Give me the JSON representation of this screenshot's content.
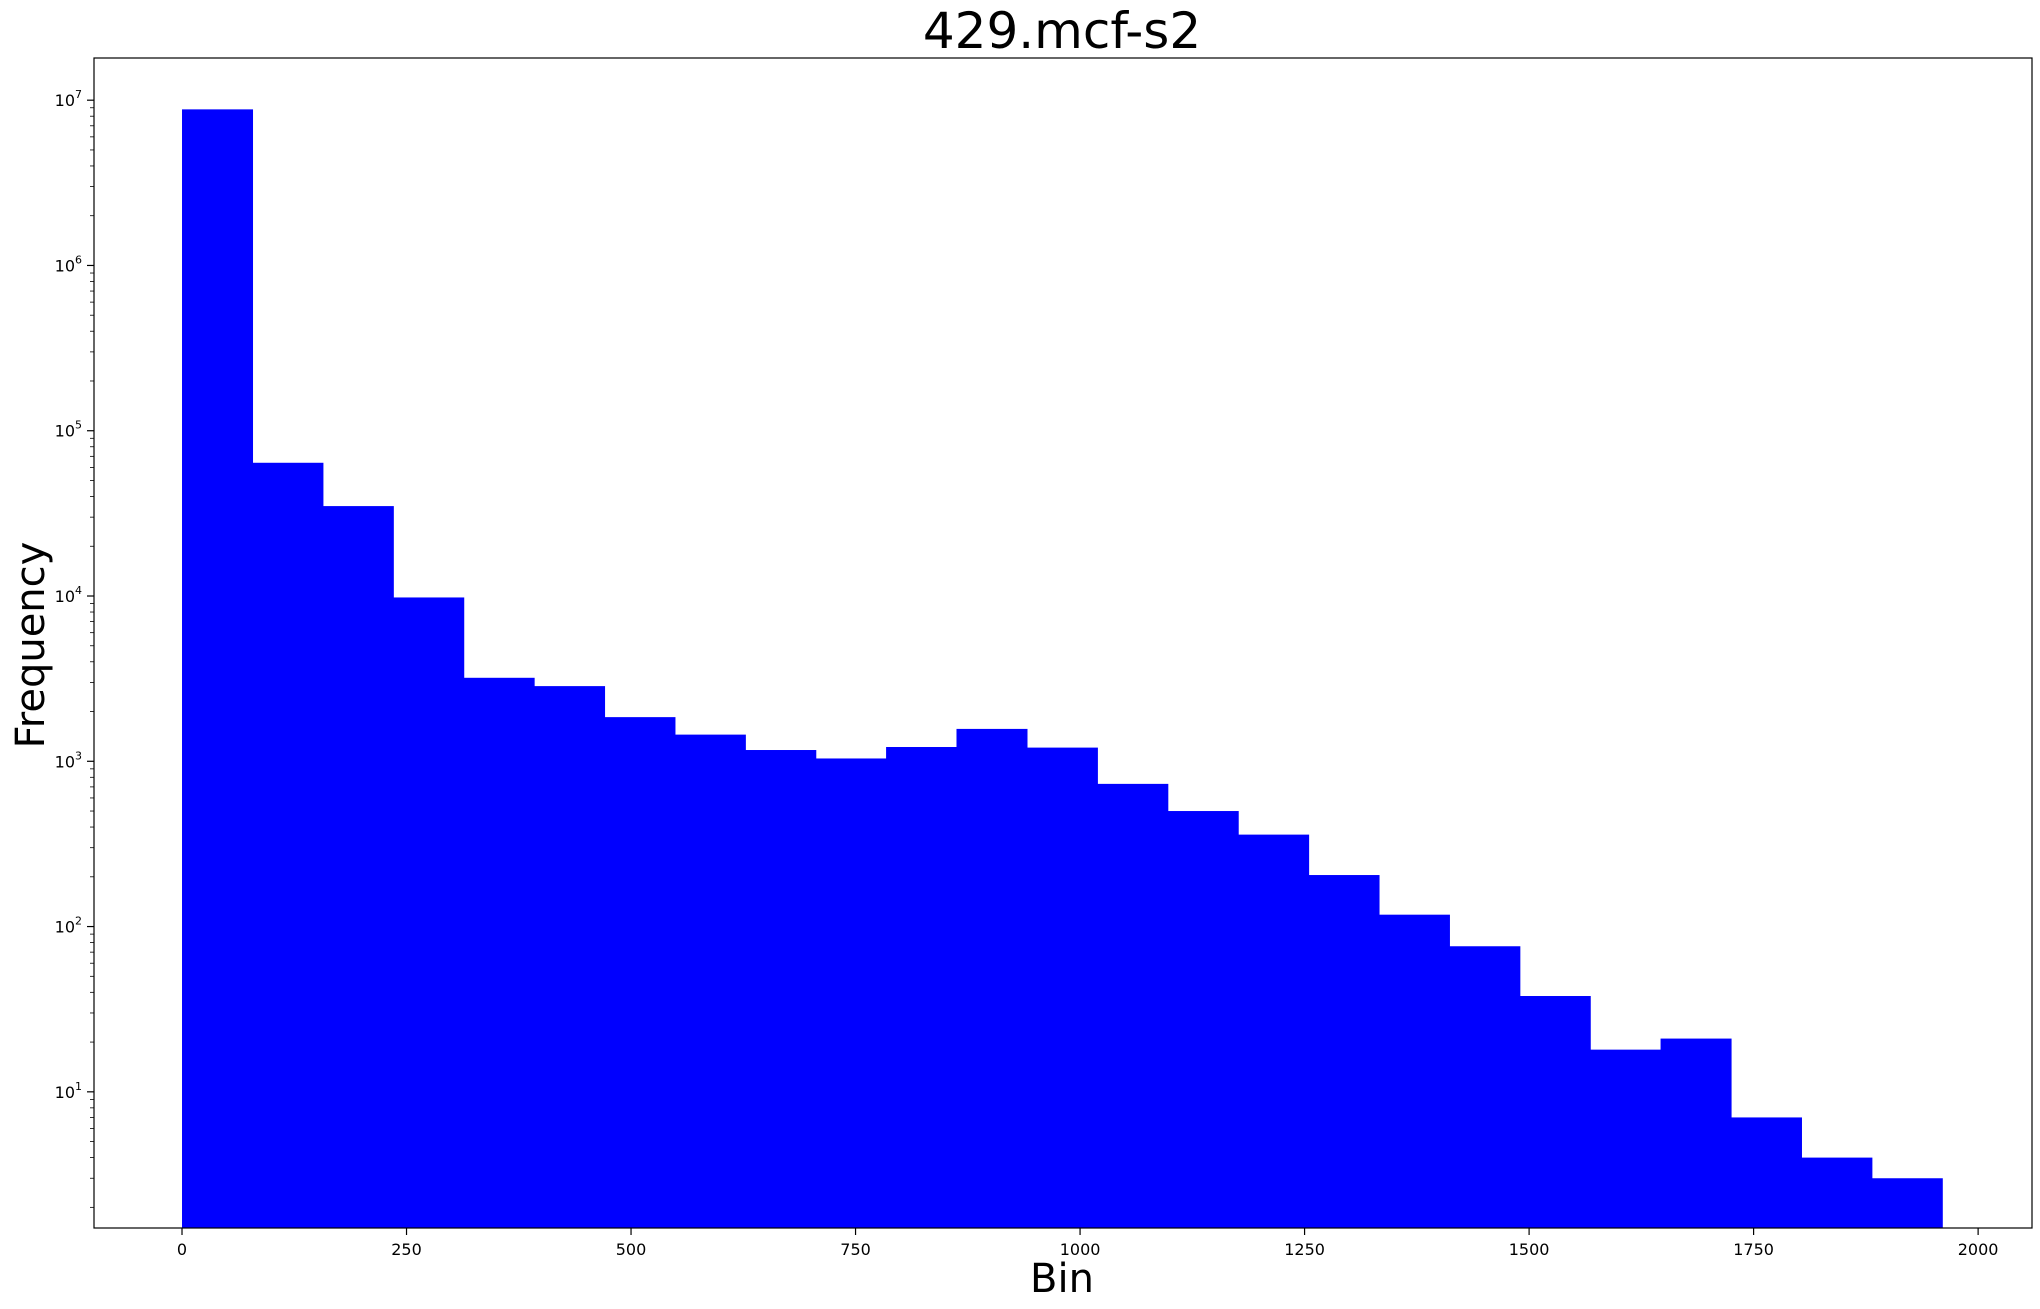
{
  "chart_data": {
    "type": "bar",
    "title": "429.mcf-s2",
    "xlabel": "Bin",
    "ylabel": "Frequency",
    "yscale": "log",
    "xlim": [
      -98,
      2060
    ],
    "ylim": [
      1.5,
      18000000
    ],
    "bar_color": "#0000ff",
    "bin_edges": [
      0,
      78.4,
      156.8,
      235.2,
      313.6,
      392,
      470.4,
      548.8,
      627.2,
      705.6,
      784,
      862.4,
      940.8,
      1019.2,
      1097.6,
      1176,
      1254.4,
      1332.8,
      1411.2,
      1489.6,
      1568,
      1646.4,
      1724.8,
      1803.2,
      1881.6,
      1960
    ],
    "values": [
      8800000,
      64000,
      35000,
      9800,
      3200,
      2850,
      1850,
      1450,
      1170,
      1040,
      1220,
      1570,
      1210,
      730,
      500,
      360,
      205,
      118,
      76,
      38,
      18,
      21,
      7,
      4,
      3
    ],
    "x_ticks": [
      0,
      250,
      500,
      750,
      1000,
      1250,
      1500,
      1750,
      2000
    ],
    "y_ticks": [
      {
        "value": 10,
        "base": "10",
        "exp": "1"
      },
      {
        "value": 100,
        "base": "10",
        "exp": "2"
      },
      {
        "value": 1000,
        "base": "10",
        "exp": "3"
      },
      {
        "value": 10000,
        "base": "10",
        "exp": "4"
      },
      {
        "value": 100000,
        "base": "10",
        "exp": "5"
      },
      {
        "value": 1000000,
        "base": "10",
        "exp": "6"
      },
      {
        "value": 10000000,
        "base": "10",
        "exp": "7"
      }
    ],
    "grid": false,
    "legend": "none"
  }
}
